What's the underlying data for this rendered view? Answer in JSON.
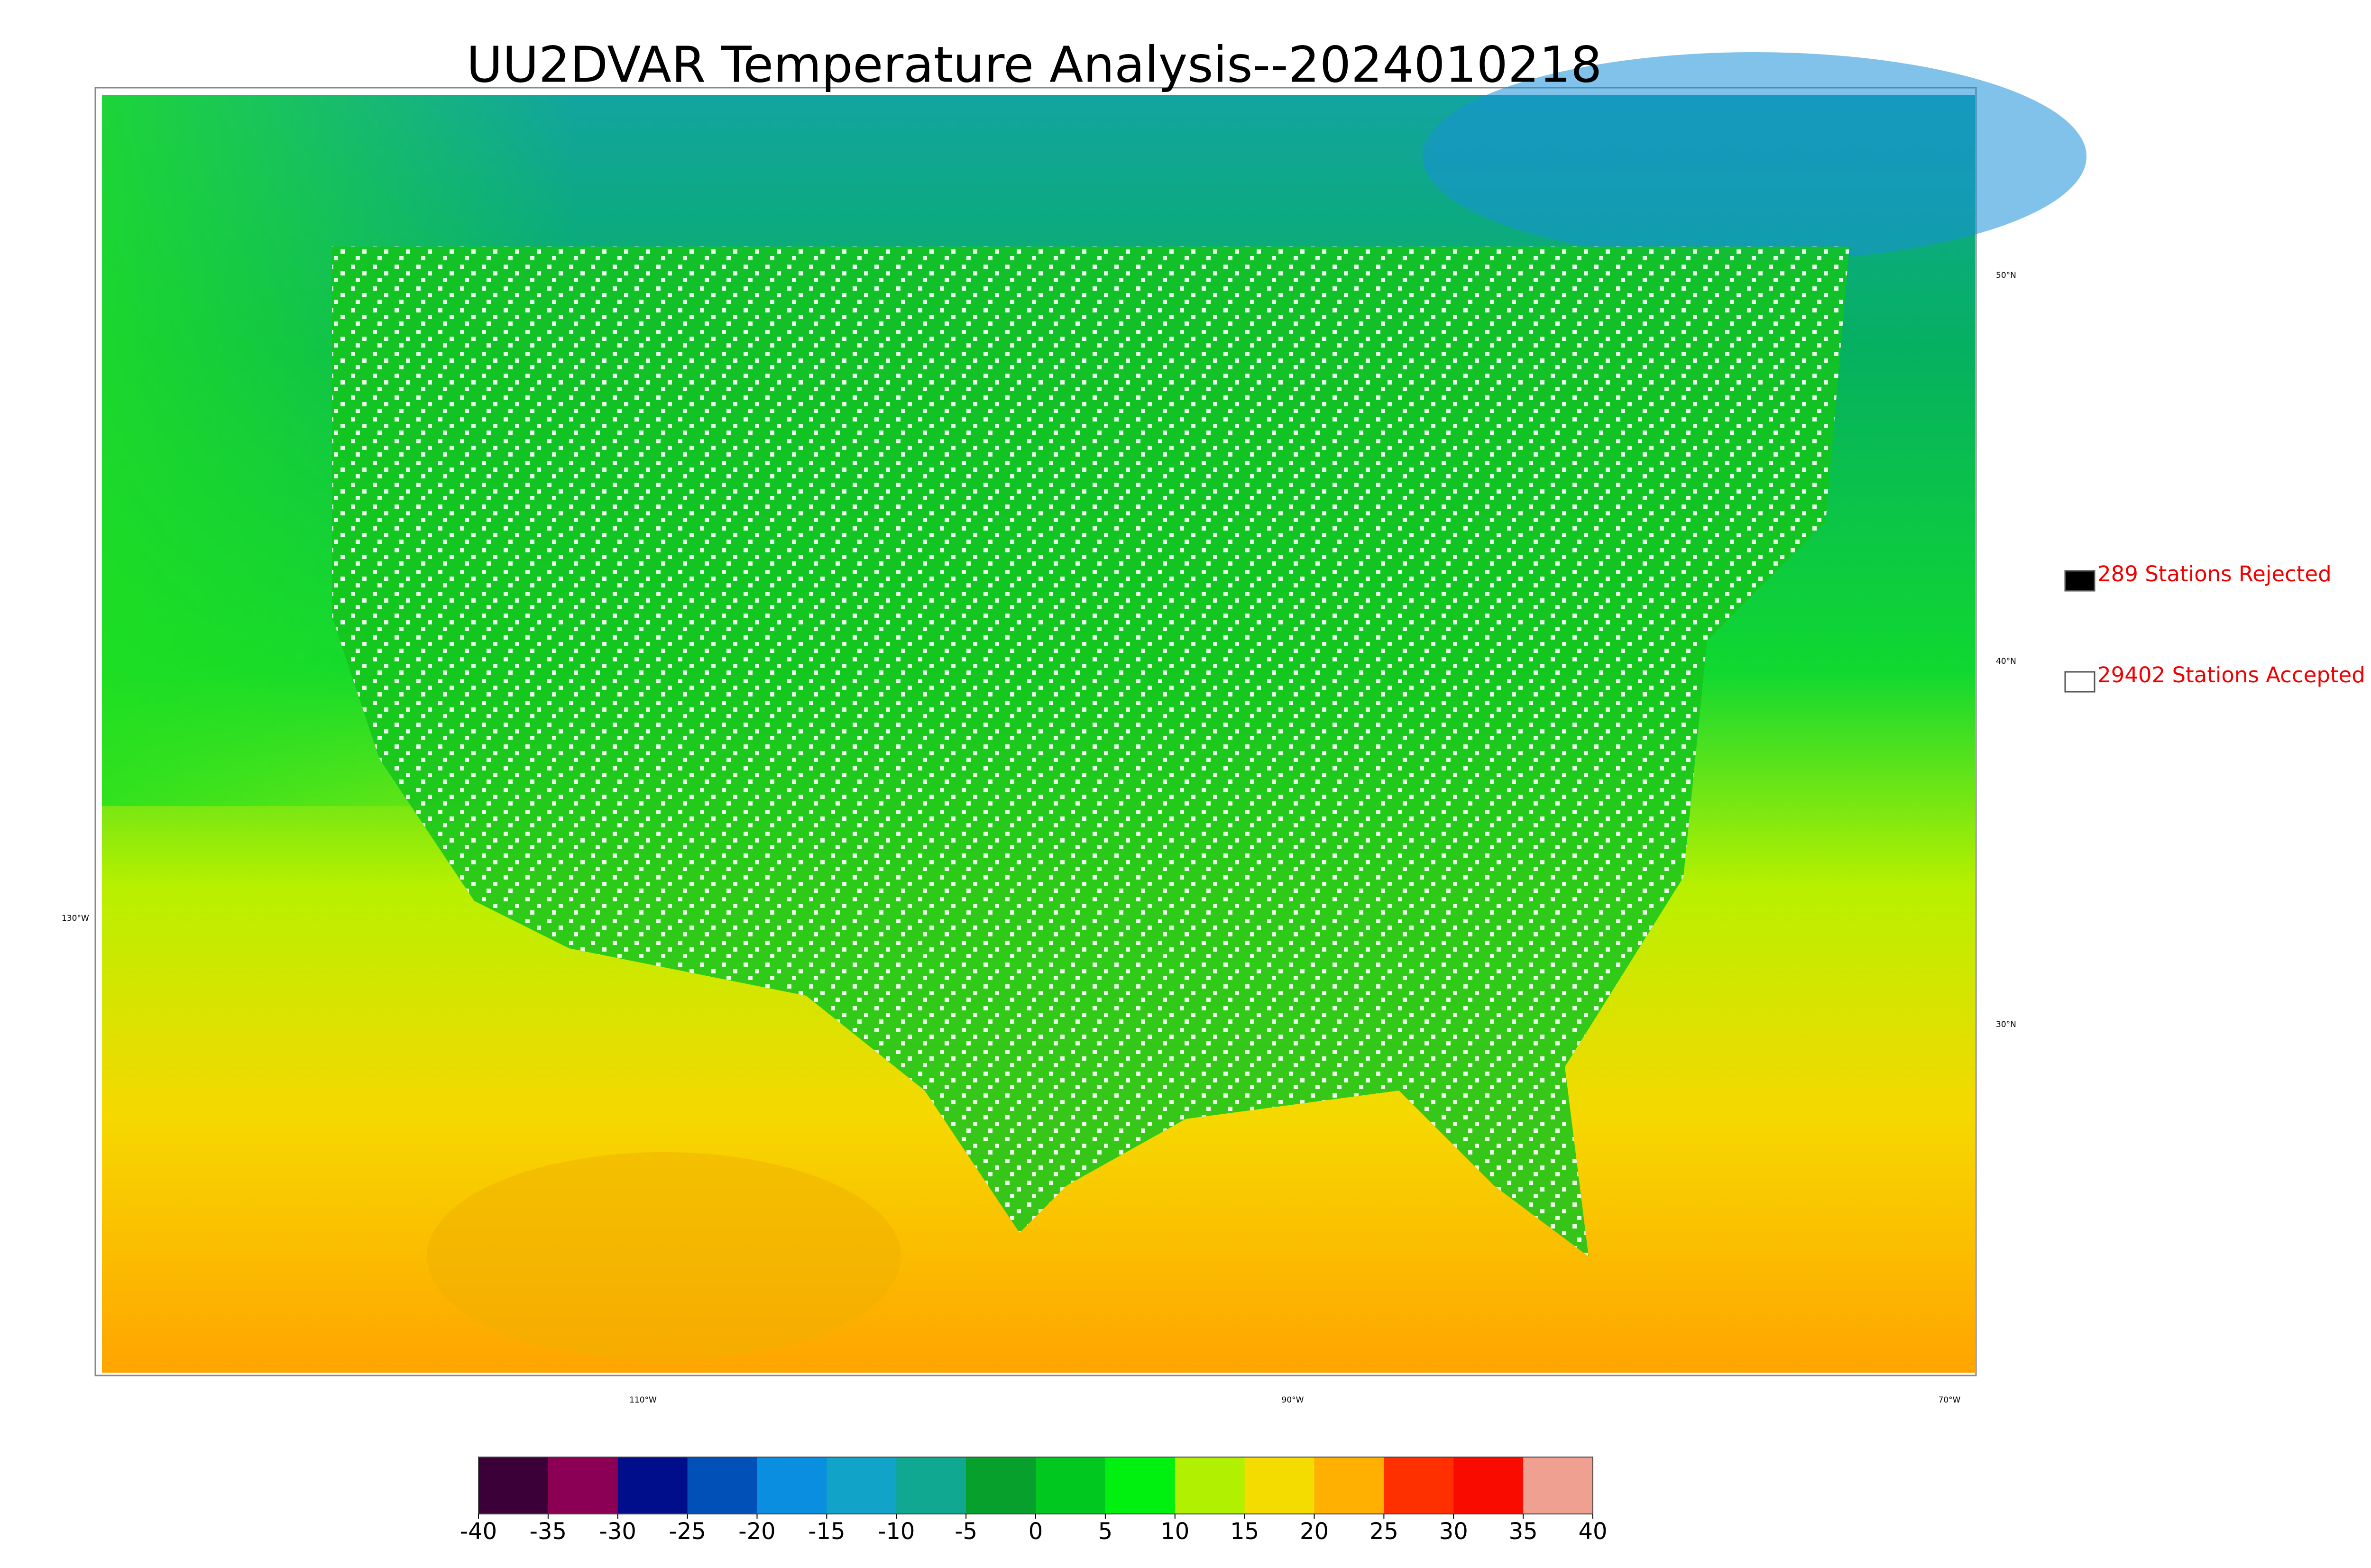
{
  "title": "UU2DVAR Temperature Analysis--2024010218",
  "legend": [
    {
      "label": "289 Stations Rejected",
      "color": "#000000"
    },
    {
      "label": "29402 Stations Accepted",
      "color": "#ffffff"
    }
  ],
  "latitude_labels": [
    "50°N",
    "40°N",
    "30°N"
  ],
  "longitude_labels": [
    "130°W",
    "110°W",
    "90°W",
    "70°W"
  ],
  "colorbar": {
    "lim": [
      -40,
      40
    ],
    "ticks": [
      -40,
      -35,
      -30,
      -25,
      -20,
      -15,
      -10,
      -5,
      0,
      5,
      10,
      15,
      20,
      25,
      30,
      35,
      40
    ],
    "colors": [
      "#3c0038",
      "#8b0055",
      "#000e8c",
      "#0050b8",
      "#0a8ee0",
      "#12a4c8",
      "#10a890",
      "#07a02c",
      "#00c81e",
      "#00f010",
      "#b0f000",
      "#f4dc00",
      "#ffb000",
      "#ff3000",
      "#fa0b00",
      "#f0a090"
    ]
  }
}
